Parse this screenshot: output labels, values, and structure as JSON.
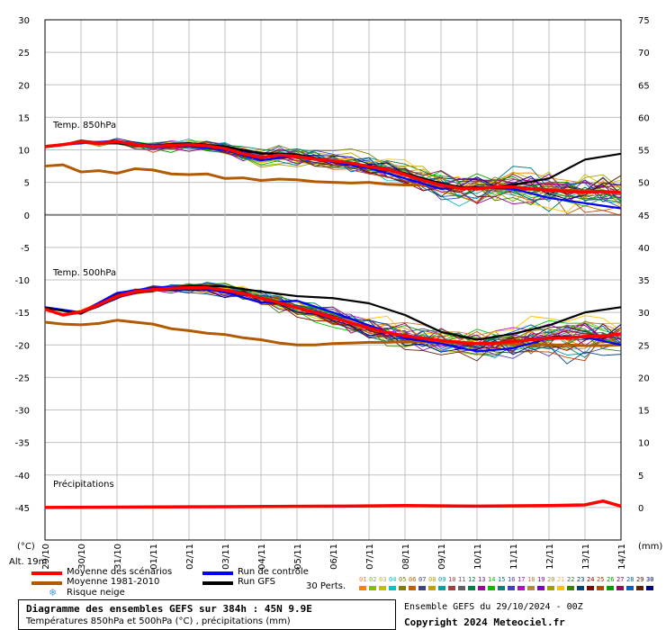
{
  "chart_data": {
    "type": "line",
    "title": "Diagramme des ensembles GEFS sur 384h : 45N 9.9E",
    "subtitle": "Températures 850hPa et 500hPa (°C) , précipitations (mm)",
    "run_info": "Ensemble GEFS du 29/10/2024 - 00Z",
    "copyright": "Copyright 2024 Meteociel.fr",
    "left_axis_unit": "(°C)",
    "right_axis_unit": "(mm)",
    "alt_label": "Alt. 19m",
    "ylim": [
      -50,
      30
    ],
    "left_ticks": [
      30,
      25,
      20,
      15,
      10,
      5,
      0,
      -5,
      -10,
      -15,
      -20,
      -25,
      -30,
      -35,
      -40,
      -45
    ],
    "right_ticks": [
      75,
      70,
      65,
      60,
      55,
      50,
      45,
      40,
      35,
      30,
      25,
      20,
      15,
      10,
      5,
      0
    ],
    "x_ticks": [
      "29/10",
      "30/10",
      "31/10",
      "01/11",
      "02/11",
      "03/11",
      "04/11",
      "05/11",
      "06/11",
      "07/11",
      "08/11",
      "09/11",
      "10/11",
      "11/11",
      "12/11",
      "13/11",
      "14/11"
    ],
    "x_hours": [
      0,
      384
    ],
    "annotations": {
      "t850": "Temp. 850hPa",
      "t500": "Temp. 500hPa",
      "precip": "Précipitations"
    },
    "legend": {
      "mean": "Moyenne des scénarios",
      "clim": "Moyenne 1981-2010",
      "snow": "Risque neige",
      "control": "Run de contrôle",
      "gfs": "Run GFS",
      "perts": "30 Perts."
    },
    "colors": {
      "mean": "#ff0000",
      "clim": "#b35900",
      "control": "#0000ff",
      "gfs": "#000000",
      "grid": "#c0c0c0",
      "zero": "#808080"
    },
    "pert_numbers": [
      "01",
      "02",
      "03",
      "04",
      "05",
      "06",
      "07",
      "08",
      "09",
      "10",
      "11",
      "12",
      "13",
      "14",
      "15",
      "16",
      "17",
      "18",
      "19",
      "20",
      "21",
      "22",
      "23",
      "24",
      "25",
      "26",
      "27",
      "28",
      "29",
      "30"
    ],
    "pert_colors": [
      "#ff8000",
      "#80c000",
      "#c0c000",
      "#00c0c0",
      "#808000",
      "#c06000",
      "#404080",
      "#c0a000",
      "#00a0a0",
      "#a04040",
      "#606060",
      "#008040",
      "#a000a0",
      "#00c000",
      "#008080",
      "#4040c0",
      "#c000c0",
      "#c08040",
      "#8000c0",
      "#a0a000",
      "#ffc000",
      "#408000",
      "#004080",
      "#800000",
      "#c04000",
      "#00a000",
      "#a00060",
      "#0060c0",
      "#602000",
      "#000080"
    ],
    "series": [
      {
        "name": "Moyenne des scénarios",
        "level": "850hPa",
        "x": [
          0,
          12,
          24,
          36,
          48,
          60,
          72,
          84,
          96,
          108,
          120,
          132,
          144,
          156,
          168,
          180,
          192,
          204,
          216,
          228,
          240,
          252,
          264,
          276,
          288,
          300,
          312,
          324,
          336,
          348,
          360,
          372,
          384
        ],
        "values": [
          10.5,
          10.8,
          11.2,
          11.0,
          11.3,
          10.8,
          10.5,
          10.7,
          10.8,
          10.6,
          10.2,
          9.4,
          8.8,
          9.2,
          9.0,
          8.6,
          8.3,
          8.0,
          7.4,
          7.0,
          6.2,
          5.3,
          4.6,
          4.1,
          4.0,
          4.3,
          4.3,
          4.0,
          3.8,
          3.6,
          3.5,
          3.6,
          3.4
        ]
      },
      {
        "name": "Moyenne 1981-2010",
        "level": "850hPa",
        "x": [
          0,
          12,
          24,
          36,
          48,
          60,
          72,
          84,
          96,
          108,
          120,
          132,
          144,
          156,
          168,
          180,
          192,
          204,
          216,
          228,
          240,
          252,
          264,
          276,
          288,
          300,
          312,
          324,
          336,
          348,
          360,
          372,
          384
        ],
        "values": [
          7.5,
          7.7,
          6.6,
          6.8,
          6.4,
          7.1,
          6.9,
          6.3,
          6.2,
          6.3,
          5.6,
          5.7,
          5.3,
          5.5,
          5.4,
          5.1,
          5.0,
          4.9,
          5.0,
          4.7,
          4.6,
          4.6,
          4.4,
          4.3,
          4.2,
          4.1,
          4.0,
          4.0,
          3.9,
          3.8,
          3.7,
          3.6,
          3.5
        ]
      },
      {
        "name": "Run de contrôle",
        "level": "850hPa",
        "x": [
          0,
          24,
          48,
          72,
          96,
          120,
          144,
          168,
          192,
          216,
          240,
          264,
          288,
          312,
          336,
          360,
          384
        ],
        "values": [
          10.6,
          11.0,
          11.4,
          10.4,
          10.6,
          10.0,
          8.4,
          9.1,
          8.1,
          7.2,
          5.6,
          4.0,
          4.3,
          4.0,
          2.6,
          1.8,
          1.0
        ]
      },
      {
        "name": "Run GFS",
        "level": "850hPa",
        "x": [
          0,
          24,
          48,
          72,
          96,
          120,
          144,
          168,
          192,
          216,
          240,
          264,
          288,
          312,
          336,
          360,
          384
        ],
        "values": [
          10.4,
          11.1,
          11.0,
          10.6,
          11.0,
          10.5,
          9.5,
          9.3,
          8.2,
          7.6,
          6.4,
          4.8,
          3.9,
          4.6,
          5.6,
          8.5,
          9.4
        ]
      },
      {
        "name": "Moyenne des scénarios",
        "level": "500hPa",
        "x": [
          0,
          12,
          24,
          36,
          48,
          60,
          72,
          84,
          96,
          108,
          120,
          132,
          144,
          156,
          168,
          180,
          192,
          204,
          216,
          228,
          240,
          252,
          264,
          276,
          288,
          300,
          312,
          324,
          336,
          348,
          360,
          372,
          384
        ],
        "values": [
          -14.5,
          -15.4,
          -14.9,
          -13.8,
          -12.5,
          -11.8,
          -11.5,
          -11.3,
          -11.2,
          -11.2,
          -11.6,
          -12.1,
          -12.8,
          -13.5,
          -14.3,
          -15.0,
          -15.8,
          -16.6,
          -17.4,
          -18.1,
          -18.6,
          -19.0,
          -19.3,
          -19.6,
          -19.8,
          -19.7,
          -19.5,
          -19.2,
          -19.0,
          -18.9,
          -18.7,
          -18.6,
          -18.3
        ]
      },
      {
        "name": "Moyenne 1981-2010",
        "level": "500hPa",
        "x": [
          0,
          12,
          24,
          36,
          48,
          60,
          72,
          84,
          96,
          108,
          120,
          132,
          144,
          156,
          168,
          180,
          192,
          204,
          216,
          228,
          240,
          252,
          264,
          276,
          288,
          300,
          312,
          324,
          336,
          348,
          360,
          372,
          384
        ],
        "values": [
          -16.5,
          -16.8,
          -16.9,
          -16.7,
          -16.2,
          -16.5,
          -16.8,
          -17.5,
          -17.8,
          -18.2,
          -18.4,
          -18.9,
          -19.2,
          -19.7,
          -20.0,
          -20.0,
          -19.8,
          -19.7,
          -19.6,
          -19.6,
          -19.5,
          -19.5,
          -19.6,
          -19.7,
          -19.8,
          -19.8,
          -19.9,
          -20.0,
          -20.0,
          -20.0,
          -20.1,
          -20.1,
          -20.0
        ]
      },
      {
        "name": "Run de contrôle",
        "level": "500hPa",
        "x": [
          0,
          24,
          48,
          72,
          96,
          120,
          144,
          168,
          192,
          216,
          240,
          264,
          288,
          312,
          336,
          360,
          384
        ],
        "values": [
          -14.2,
          -15.0,
          -12.0,
          -11.2,
          -11.0,
          -11.9,
          -13.5,
          -13.2,
          -15.0,
          -17.0,
          -19.0,
          -19.8,
          -21.0,
          -20.5,
          -19.0,
          -18.8,
          -20.0
        ]
      },
      {
        "name": "Run GFS",
        "level": "500hPa",
        "x": [
          0,
          24,
          48,
          72,
          96,
          120,
          144,
          168,
          192,
          216,
          240,
          264,
          288,
          312,
          336,
          360,
          384
        ],
        "values": [
          -14.3,
          -15.2,
          -12.3,
          -11.6,
          -10.9,
          -11.0,
          -11.8,
          -12.5,
          -12.8,
          -13.6,
          -15.4,
          -18.0,
          -19.2,
          -18.3,
          -17.0,
          -15.0,
          -14.2
        ]
      },
      {
        "name": "Moyenne des scénarios",
        "level": "precip",
        "x": [
          0,
          96,
          192,
          240,
          288,
          336,
          360,
          372,
          384
        ],
        "values": [
          0.0,
          0.1,
          0.2,
          0.3,
          0.2,
          0.3,
          0.4,
          1.0,
          0.2
        ]
      }
    ]
  }
}
